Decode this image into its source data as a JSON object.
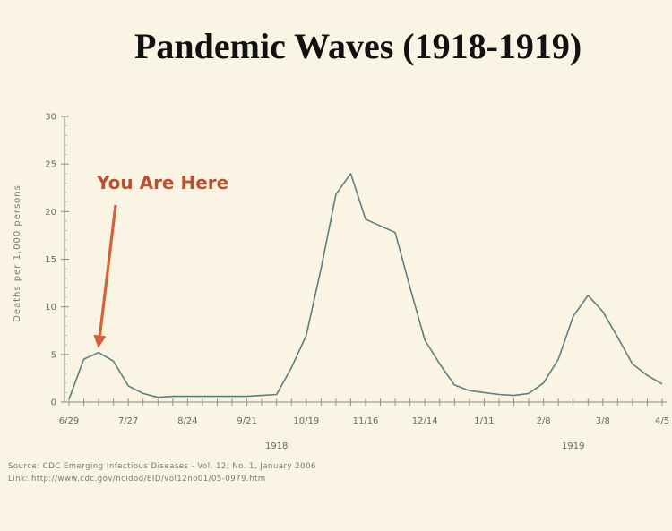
{
  "chart_data": {
    "type": "line",
    "title": "Pandemic Waves (1918-1919)",
    "ylabel": "Deaths per 1,000 persons",
    "ylim": [
      0,
      30
    ],
    "yticks": [
      0,
      5,
      10,
      15,
      20,
      25,
      30
    ],
    "xticks": [
      "6/29",
      "7/27",
      "8/24",
      "9/21",
      "10/19",
      "11/16",
      "12/14",
      "1/11",
      "2/8",
      "3/8",
      "4/5"
    ],
    "year_labels": [
      {
        "label": "1918",
        "at_tick": "9/21",
        "offset": 0.5
      },
      {
        "label": "1919",
        "at_tick": "2/8",
        "offset": 0.5
      }
    ],
    "xrange_weeks": [
      -0.3,
      40.3
    ],
    "series": [
      {
        "name": "",
        "color": "#5b7f82",
        "x": [
          0,
          1,
          2,
          3,
          4,
          5,
          6,
          7,
          8,
          9,
          10,
          11,
          12,
          13,
          14,
          15,
          16,
          17,
          18,
          19,
          20,
          21,
          22,
          23,
          24,
          25,
          26,
          27,
          28,
          29,
          30,
          31,
          32,
          33,
          34,
          35,
          36,
          37,
          38,
          39,
          40
        ],
        "values": [
          0.3,
          4.5,
          5.2,
          4.3,
          1.7,
          0.9,
          0.5,
          0.6,
          0.6,
          0.6,
          0.6,
          0.6,
          0.6,
          0.7,
          0.8,
          3.6,
          7.0,
          14.0,
          21.8,
          24.0,
          19.2,
          18.5,
          17.8,
          12.0,
          6.5,
          4.0,
          1.8,
          1.2,
          1.0,
          0.8,
          0.7,
          0.9,
          2.0,
          4.5,
          9.0,
          11.2,
          9.5,
          6.8,
          4.0,
          2.8,
          1.9
        ]
      }
    ],
    "annotation": {
      "text": "You Are Here",
      "color": "#d5603c",
      "target_x": 2,
      "target_y": 5.2
    }
  },
  "footer": {
    "source": "Source: CDC Emerging Infectious Diseases - Vol. 12, No. 1, January 2006",
    "link": "Link: http://www.cdc.gov/ncidod/EID/vol12no01/05-0979.htm"
  }
}
